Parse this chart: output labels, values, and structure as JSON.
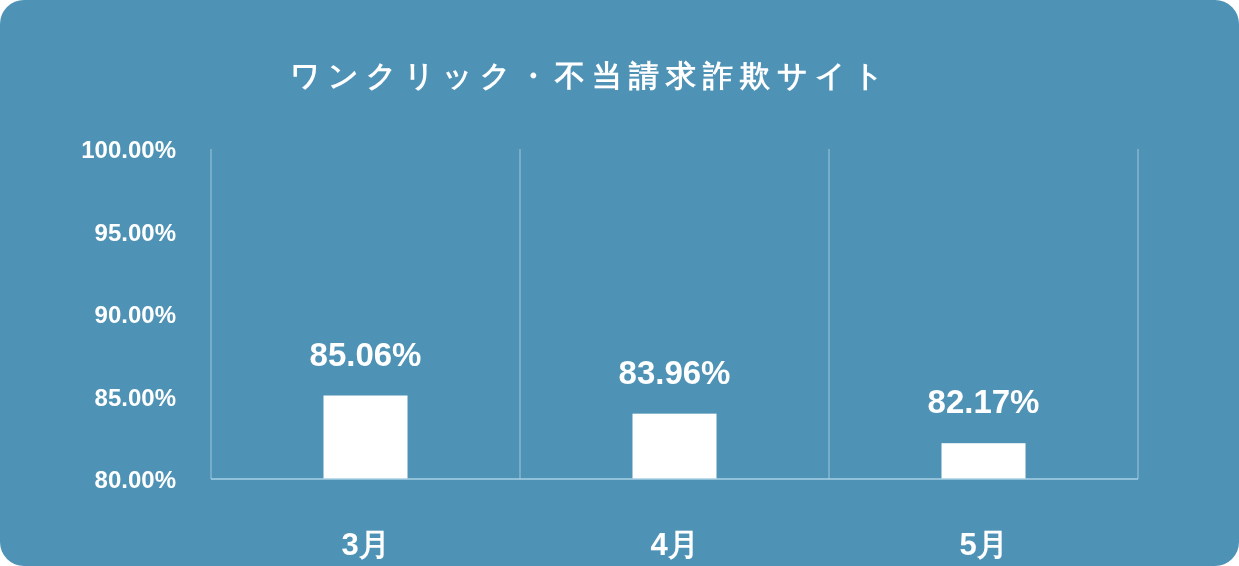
{
  "chart_data": {
    "type": "bar",
    "title": "ワンクリック・不当請求詐欺サイト",
    "categories": [
      "3月",
      "4月",
      "5月"
    ],
    "values": [
      85.06,
      83.96,
      82.17
    ],
    "color": "#ffffff",
    "value_labels": [
      "85.06%",
      "83.96%",
      "82.17%"
    ],
    "ylim": [
      80,
      100
    ],
    "yticks": [
      {
        "value": 80,
        "label": "80.00%"
      },
      {
        "value": 85,
        "label": "85.00%"
      },
      {
        "value": 90,
        "label": "90.00%"
      },
      {
        "value": 95,
        "label": "95.00%"
      },
      {
        "value": 100,
        "label": "100.00%"
      }
    ],
    "grid": "x"
  }
}
